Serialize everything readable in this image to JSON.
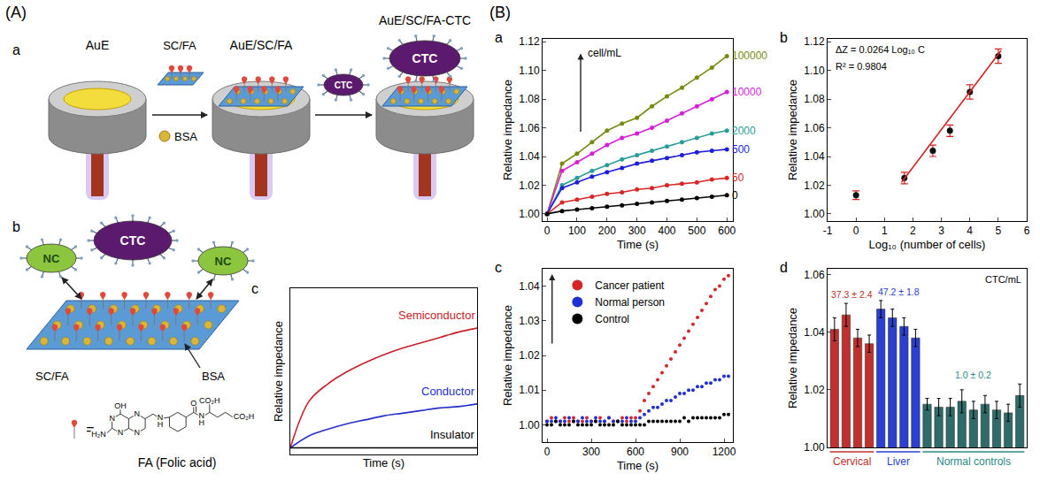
{
  "panel_labels": [
    "(A)",
    "(B)"
  ],
  "diagram": {
    "a": {
      "letter": "a",
      "electrodes": [
        "AuE",
        "AuE/SC/FA",
        "AuE/SC/FA-CTC"
      ],
      "film": "SC/FA",
      "cell": "CTC",
      "blocker": "BSA"
    },
    "b": {
      "letter": "b",
      "normal_cell": "NC",
      "cell": "CTC",
      "blocker": "BSA",
      "film": "SC/FA",
      "equals": "=",
      "molecule": "FA (Folic acid)",
      "atoms": [
        "OH",
        "N",
        "N",
        "H₂N",
        "N",
        "N",
        "N",
        "H",
        "O",
        "N",
        "H",
        "CO₂H",
        "CO₂H"
      ]
    }
  },
  "chart_data": [
    {
      "letter": "c",
      "type": "line",
      "x_label": "Time (s)",
      "y_label": "Relative impedance",
      "x": [
        0,
        1,
        2,
        3,
        4,
        5,
        6,
        7,
        8,
        9,
        10
      ],
      "xlim": [
        0,
        10
      ],
      "ylim": [
        -0.05,
        1.2
      ],
      "tick_labels": false,
      "grid": false,
      "series": [
        {
          "name": "Semiconductor",
          "color": "#c8202a",
          "values": [
            0,
            0.35,
            0.48,
            0.57,
            0.64,
            0.7,
            0.75,
            0.79,
            0.83,
            0.87,
            0.9
          ]
        },
        {
          "name": "Conductor",
          "color": "#2430c8",
          "values": [
            0,
            0.09,
            0.14,
            0.18,
            0.21,
            0.24,
            0.26,
            0.28,
            0.3,
            0.31,
            0.33
          ]
        },
        {
          "name": "Insulator",
          "color": "#000000",
          "values": [
            0,
            0,
            0,
            0,
            0,
            0,
            0,
            0,
            0,
            0,
            0
          ]
        }
      ]
    },
    {
      "letter": "a",
      "type": "line",
      "marker": "circle",
      "x_label": "Time (s)",
      "y_label": "Relative impedance",
      "x": [
        0,
        50,
        100,
        150,
        200,
        250,
        300,
        350,
        400,
        450,
        500,
        550,
        600
      ],
      "xlim": [
        -15,
        620
      ],
      "ylim": [
        0.995,
        1.122
      ],
      "xticks": [
        0,
        100,
        200,
        300,
        400,
        500,
        600
      ],
      "yticks": [
        {
          "value": 1.0,
          "label": "1.00"
        },
        {
          "value": 1.02,
          "label": "1.02"
        },
        {
          "value": 1.04,
          "label": "1.04"
        },
        {
          "value": 1.06,
          "label": "1.06"
        },
        {
          "value": 1.08,
          "label": "1.08"
        },
        {
          "value": 1.1,
          "label": "1.10"
        },
        {
          "value": 1.12,
          "label": "1.12"
        }
      ],
      "grid": false,
      "annotations": [
        "cell/mL"
      ],
      "series": [
        {
          "name": "100000",
          "color": "#7a8a10",
          "values": [
            1.0,
            1.035,
            1.042,
            1.05,
            1.058,
            1.063,
            1.067,
            1.075,
            1.082,
            1.088,
            1.095,
            1.102,
            1.11
          ]
        },
        {
          "name": "10000",
          "color": "#d61fd6",
          "values": [
            1.0,
            1.03,
            1.036,
            1.042,
            1.048,
            1.053,
            1.056,
            1.06,
            1.065,
            1.07,
            1.075,
            1.08,
            1.085
          ]
        },
        {
          "name": "2000",
          "color": "#2a9d9a",
          "values": [
            1.0,
            1.02,
            1.025,
            1.03,
            1.034,
            1.038,
            1.041,
            1.044,
            1.047,
            1.05,
            1.053,
            1.056,
            1.058
          ]
        },
        {
          "name": "500",
          "color": "#1f1fd6",
          "values": [
            1.0,
            1.018,
            1.022,
            1.026,
            1.029,
            1.032,
            1.035,
            1.037,
            1.039,
            1.041,
            1.043,
            1.044,
            1.045
          ]
        },
        {
          "name": "50",
          "color": "#d62728",
          "values": [
            1.0,
            1.008,
            1.01,
            1.012,
            1.014,
            1.015,
            1.017,
            1.018,
            1.02,
            1.021,
            1.022,
            1.024,
            1.025
          ]
        },
        {
          "name": "0",
          "color": "#000000",
          "values": [
            1.0,
            1.002,
            1.003,
            1.004,
            1.005,
            1.006,
            1.007,
            1.008,
            1.009,
            1.01,
            1.011,
            1.012,
            1.013
          ]
        }
      ]
    },
    {
      "letter": "b",
      "type": "scatter",
      "x_label": "Log₁₀ (number of cells)",
      "y_label": "Relative impedance",
      "xlim": [
        -1,
        6
      ],
      "ylim": [
        0.995,
        1.122
      ],
      "xticks": [
        -1,
        0,
        1,
        2,
        3,
        4,
        5,
        6
      ],
      "yticks": [
        {
          "value": 1.0,
          "label": "1.00"
        },
        {
          "value": 1.02,
          "label": "1.02"
        },
        {
          "value": 1.04,
          "label": "1.04"
        },
        {
          "value": 1.06,
          "label": "1.06"
        },
        {
          "value": 1.08,
          "label": "1.08"
        },
        {
          "value": 1.1,
          "label": "1.10"
        },
        {
          "value": 1.12,
          "label": "1.12"
        }
      ],
      "grid": false,
      "annotations": [
        "ΔZ = 0.0264 Log₁₀ C",
        "R² = 0.9804"
      ],
      "series": [
        {
          "type": "scatter",
          "marker": "circle",
          "color": "#111111",
          "x": [
            0,
            1.7,
            2.7,
            3.3,
            4.0,
            5.0
          ],
          "values": [
            1.013,
            1.025,
            1.044,
            1.058,
            1.085,
            1.11
          ],
          "errors": [
            0.003,
            0.004,
            0.004,
            0.004,
            0.005,
            0.005
          ]
        },
        {
          "type": "line",
          "color": "#d62020",
          "x": [
            1.6,
            5.1
          ],
          "values": [
            1.022,
            1.114
          ]
        }
      ]
    },
    {
      "letter": "c",
      "type": "scatter",
      "marker": "circle",
      "x_label": "Time (s)",
      "y_label": "Relative impedance",
      "x": [
        0,
        30,
        60,
        90,
        120,
        150,
        180,
        210,
        240,
        270,
        300,
        330,
        360,
        390,
        420,
        450,
        480,
        510,
        540,
        570,
        600,
        630,
        660,
        690,
        720,
        750,
        780,
        810,
        840,
        870,
        900,
        930,
        960,
        990,
        1020,
        1050,
        1080,
        1110,
        1140,
        1170,
        1200,
        1230
      ],
      "xlim": [
        -30,
        1260
      ],
      "ylim": [
        0.995,
        1.045
      ],
      "xticks": [
        0,
        300,
        600,
        900,
        1200
      ],
      "yticks": [
        {
          "value": 1.0,
          "label": "1.00"
        },
        {
          "value": 1.01,
          "label": "1.01"
        },
        {
          "value": 1.02,
          "label": "1.02"
        },
        {
          "value": 1.03,
          "label": "1.03"
        },
        {
          "value": 1.04,
          "label": "1.04"
        }
      ],
      "grid": false,
      "legend": "upper left",
      "series": [
        {
          "name": "Cancer patient",
          "color": "#d62728",
          "values": [
            1.001,
            1.002,
            1.001,
            1.001,
            1.002,
            1.001,
            1.002,
            1.001,
            1.001,
            1.002,
            1.001,
            1.001,
            1.002,
            1.001,
            1.002,
            1.001,
            1.001,
            1.002,
            1.001,
            1.002,
            1.002,
            1.004,
            1.007,
            1.009,
            1.011,
            1.013,
            1.015,
            1.017,
            1.019,
            1.021,
            1.023,
            1.025,
            1.027,
            1.029,
            1.031,
            1.033,
            1.035,
            1.037,
            1.039,
            1.04,
            1.042,
            1.043
          ]
        },
        {
          "name": "Normal person",
          "color": "#1f2fd6",
          "values": [
            1.001,
            1.001,
            1.002,
            1.001,
            1.001,
            1.002,
            1.001,
            1.001,
            1.002,
            1.001,
            1.001,
            1.002,
            1.001,
            1.001,
            1.002,
            1.001,
            1.001,
            1.001,
            1.002,
            1.001,
            1.001,
            1.002,
            1.003,
            1.004,
            1.005,
            1.005,
            1.006,
            1.007,
            1.007,
            1.008,
            1.009,
            1.009,
            1.01,
            1.01,
            1.011,
            1.011,
            1.012,
            1.012,
            1.013,
            1.013,
            1.014,
            1.014
          ]
        },
        {
          "name": "Control",
          "color": "#000000",
          "values": [
            1.0,
            1.0,
            1.001,
            1.0,
            1.0,
            1.0,
            1.001,
            1.0,
            1.0,
            1.0,
            1.0,
            1.001,
            1.0,
            1.0,
            1.0,
            1.0,
            1.001,
            1.0,
            1.0,
            1.0,
            1.0,
            1.0,
            1.0,
            1.001,
            1.001,
            1.001,
            1.001,
            1.001,
            1.001,
            1.001,
            1.001,
            1.002,
            1.001,
            1.002,
            1.002,
            1.002,
            1.002,
            1.002,
            1.002,
            1.002,
            1.003,
            1.003
          ]
        }
      ]
    },
    {
      "letter": "d",
      "type": "bar",
      "y_label": "Relative impedance",
      "categories": [
        null,
        null,
        null,
        null,
        null,
        null,
        null,
        null,
        null,
        null,
        null,
        null,
        null,
        null,
        null,
        null,
        null
      ],
      "values": [
        1.041,
        1.046,
        1.038,
        1.036,
        1.048,
        1.045,
        1.042,
        1.038,
        1.015,
        1.014,
        1.014,
        1.016,
        1.013,
        1.015,
        1.013,
        1.012,
        1.018
      ],
      "errors": [
        0.004,
        0.004,
        0.003,
        0.003,
        0.003,
        0.003,
        0.003,
        0.003,
        0.002,
        0.003,
        0.003,
        0.004,
        0.003,
        0.003,
        0.003,
        0.003,
        0.004
      ],
      "colors": [
        "#c0302e",
        "#c0302e",
        "#c0302e",
        "#c0302e",
        "#2b3fd0",
        "#2b3fd0",
        "#2b3fd0",
        "#2b3fd0",
        "#2f6b69",
        "#2f6b69",
        "#2f6b69",
        "#2f6b69",
        "#2f6b69",
        "#2f6b69",
        "#2f6b69",
        "#2f6b69",
        "#2f6b69"
      ],
      "ylim": [
        1.0,
        1.062
      ],
      "yticks": [
        {
          "value": 1.0,
          "label": "1.00"
        },
        {
          "value": 1.02,
          "label": "1.02"
        },
        {
          "value": 1.04,
          "label": "1.04"
        },
        {
          "value": 1.06,
          "label": "1.06"
        }
      ],
      "tick_labels": "y",
      "grid": false,
      "annotations": [
        "CTC/mL"
      ],
      "groups": [
        {
          "label": "Cervical",
          "count": 4,
          "note": "37.3 ± 2.4",
          "color": "#c0302e"
        },
        {
          "label": "Liver",
          "count": 4,
          "note": "47.2 ± 1.8",
          "color": "#2b3fd0"
        },
        {
          "label": "Normal controls",
          "count": 9,
          "note": "1.0 ± 0.2",
          "color": "#2a8a86"
        }
      ]
    }
  ]
}
